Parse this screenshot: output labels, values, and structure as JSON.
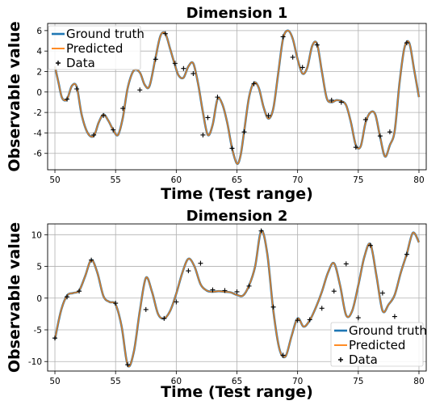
{
  "colors": {
    "ground_truth": "#1f77b4",
    "predicted": "#ff7f0e",
    "data": "#000000",
    "grid": "#b0b0b0"
  },
  "chart_data": [
    {
      "type": "line",
      "title": "Dimension 1",
      "xlabel": "Time (Test range)",
      "ylabel": "Observable value",
      "xlim": [
        49.4,
        80.6
      ],
      "ylim": [
        -7.6,
        6.7
      ],
      "xticks": [
        50,
        55,
        60,
        65,
        70,
        75,
        80
      ],
      "yticks": [
        -6,
        -4,
        -2,
        0,
        2,
        4,
        6
      ],
      "grid": true,
      "legend": "top-left",
      "series": [
        {
          "name": "Ground truth",
          "kind": "line",
          "x": [
            50,
            50.3,
            50.6,
            51,
            51.4,
            51.8,
            52.2,
            52.7,
            53.2,
            53.6,
            54,
            54.4,
            54.8,
            55.2,
            55.6,
            56,
            56.5,
            57,
            57.4,
            57.8,
            58.3,
            58.7,
            59.1,
            59.5,
            59.9,
            60.2,
            60.6,
            61,
            61.4,
            61.8,
            62.2,
            62.6,
            63,
            63.4,
            63.8,
            64.2,
            64.6,
            65,
            65.3,
            65.6,
            66,
            66.4,
            66.8,
            67.2,
            67.6,
            68,
            68.4,
            68.8,
            69.2,
            69.6,
            70,
            70.4,
            70.8,
            71.2,
            71.6,
            72,
            72.4,
            72.8,
            73.2,
            73.6,
            74,
            74.4,
            74.8,
            75.2,
            75.6,
            76,
            76.4,
            76.8,
            77.2,
            77.6,
            78,
            78.4,
            78.8,
            79.2,
            79.6,
            80
          ],
          "y": [
            2.5,
            0.9,
            -0.6,
            -0.7,
            0.6,
            0.5,
            -2.2,
            -4.0,
            -4.3,
            -3.0,
            -2.2,
            -2.8,
            -3.7,
            -4.2,
            -2.5,
            0.4,
            2.1,
            1.9,
            0.7,
            0.6,
            3.4,
            5.5,
            5.7,
            4.2,
            2.6,
            1.6,
            1.4,
            2.5,
            2.8,
            0.8,
            -2.0,
            -4.2,
            -3.2,
            -0.7,
            -1.2,
            -3.0,
            -5.5,
            -7.0,
            -6.2,
            -3.8,
            -0.5,
            0.9,
            0.4,
            -1.5,
            -2.6,
            -1.6,
            1.8,
            5.2,
            6.0,
            5.2,
            3.2,
            1.8,
            2.4,
            4.5,
            4.7,
            2.0,
            -0.6,
            -1.0,
            -0.8,
            -0.9,
            -1.3,
            -3.0,
            -5.2,
            -5.3,
            -3.0,
            -2.0,
            -2.2,
            -4.4,
            -6.3,
            -5.2,
            -3.8,
            0.9,
            4.3,
            4.8,
            2.2,
            -0.5
          ]
        },
        {
          "name": "Predicted",
          "kind": "line",
          "same_as": "Ground truth"
        },
        {
          "name": "Data",
          "kind": "marker",
          "marker": "+",
          "x": [
            51,
            51.8,
            53.2,
            54,
            54.8,
            55.6,
            57,
            58.3,
            59.1,
            59.9,
            60.6,
            61.4,
            62.2,
            62.6,
            63.4,
            64.6,
            65.6,
            66.4,
            67.6,
            68.8,
            69.6,
            70.4,
            71.6,
            72.8,
            73.6,
            74.8,
            75.6,
            76.8,
            77.6,
            79
          ],
          "y": [
            -0.7,
            0.3,
            -4.2,
            -2.3,
            -3.7,
            -1.6,
            0.2,
            3.2,
            5.7,
            2.8,
            2.3,
            1.8,
            -4.2,
            -2.5,
            -0.5,
            -5.5,
            -3.9,
            0.8,
            -2.3,
            5.4,
            3.4,
            2.4,
            4.6,
            -0.8,
            -1.0,
            -5.4,
            -2.7,
            -4.3,
            -3.9,
            4.8
          ]
        }
      ]
    },
    {
      "type": "line",
      "title": "Dimension 2",
      "xlabel": "Time (Test range)",
      "ylabel": "Observable value",
      "xlim": [
        49.4,
        80.6
      ],
      "ylim": [
        -11.5,
        11.7
      ],
      "xticks": [
        50,
        55,
        60,
        65,
        70,
        75,
        80
      ],
      "yticks": [
        -10,
        -5,
        0,
        5,
        10
      ],
      "grid": true,
      "legend": "bottom-right",
      "series": [
        {
          "name": "Ground truth",
          "kind": "line",
          "x": [
            50,
            50.5,
            51,
            51.5,
            52,
            52.5,
            53,
            53.5,
            54,
            54.5,
            55,
            55.5,
            56,
            56.5,
            57,
            57.5,
            58,
            58.5,
            59,
            59.5,
            60,
            60.5,
            61,
            61.5,
            62,
            62.5,
            63,
            63.5,
            64,
            64.5,
            65,
            65.5,
            66,
            66.5,
            67,
            67.5,
            68,
            68.5,
            69,
            69.5,
            70,
            70.5,
            71,
            71.5,
            72,
            72.5,
            73,
            73.5,
            74,
            74.5,
            75,
            75.5,
            76,
            76.5,
            77,
            77.5,
            78,
            78.5,
            79,
            79.5,
            80
          ],
          "y": [
            -6.5,
            -2.0,
            0.4,
            0.8,
            1.2,
            3.5,
            6.0,
            4.0,
            0.3,
            -0.6,
            -1.0,
            -4.5,
            -10.6,
            -8.5,
            -2.0,
            3.2,
            1.0,
            -2.5,
            -3.2,
            -2.0,
            0.7,
            4.0,
            6.2,
            5.0,
            2.2,
            1.2,
            1.0,
            1.1,
            1.0,
            0.9,
            0.5,
            0.4,
            2.0,
            5.0,
            10.6,
            7.0,
            -2.0,
            -8.0,
            -9.2,
            -6.0,
            -3.2,
            -4.5,
            -3.5,
            -1.5,
            1.0,
            4.0,
            5.5,
            2.0,
            -2.7,
            -2.0,
            2.0,
            6.5,
            8.5,
            3.5,
            -2.0,
            -1.0,
            0.5,
            4.0,
            7.0,
            10.3,
            8.8
          ]
        },
        {
          "name": "Predicted",
          "kind": "line",
          "same_as": "Ground truth"
        },
        {
          "name": "Data",
          "kind": "marker",
          "marker": "+",
          "x": [
            50,
            51,
            52,
            53,
            55,
            56,
            57.5,
            59,
            60,
            61,
            62,
            63,
            64,
            65,
            66,
            67,
            68,
            68.8,
            70,
            71,
            72,
            73,
            74,
            75,
            76,
            77,
            78,
            79
          ],
          "y": [
            -6.3,
            0.2,
            1.1,
            6.0,
            -0.8,
            -10.5,
            -1.8,
            -3.2,
            -0.6,
            4.3,
            5.5,
            1.3,
            1.2,
            1.0,
            1.9,
            10.6,
            -1.4,
            -9.0,
            -3.5,
            -3.4,
            -1.6,
            1.1,
            5.4,
            -3.1,
            8.3,
            0.8,
            -2.9,
            6.9
          ]
        }
      ]
    }
  ]
}
